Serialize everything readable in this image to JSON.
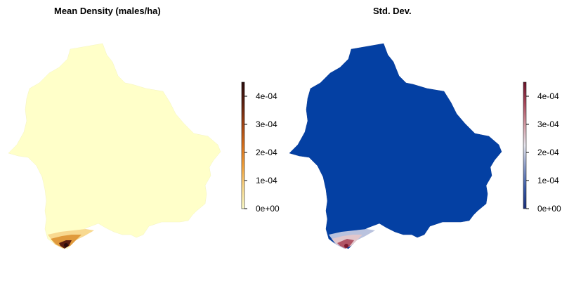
{
  "panels": [
    {
      "title": "Mean Density (males/ha)",
      "fill_color": "#FFFFC9",
      "colorbar": {
        "ticks": [
          "0e+00",
          "1e-04",
          "2e-04",
          "3e-04",
          "4e-04"
        ],
        "colors": [
          "#FFFFCC",
          "#FDDC8E",
          "#F6A43A",
          "#D9701A",
          "#A24312",
          "#5C1E0E",
          "#2A0A0A"
        ]
      }
    },
    {
      "title": "Std. Dev.",
      "fill_color": "#0440A3",
      "colorbar": {
        "ticks": [
          "0e+00",
          "1e-04",
          "2e-04",
          "3e-04",
          "4e-04"
        ],
        "colors": [
          "#1A2E7A",
          "#3A5BA8",
          "#8A9BC8",
          "#E6E6EE",
          "#D49AA3",
          "#A8475A",
          "#6A1128"
        ]
      }
    }
  ]
}
